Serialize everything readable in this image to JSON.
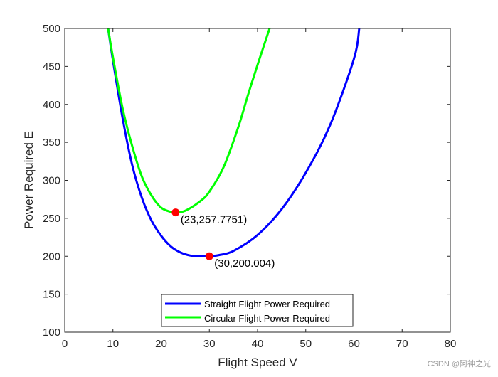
{
  "chart_data": {
    "type": "line",
    "xlabel": "Flight Speed V",
    "ylabel": "Power Required E",
    "xlim": [
      0,
      80
    ],
    "ylim": [
      100,
      500
    ],
    "xticks": [
      0,
      10,
      20,
      30,
      40,
      50,
      60,
      70,
      80
    ],
    "yticks": [
      100,
      150,
      200,
      250,
      300,
      350,
      400,
      450,
      500
    ],
    "grid": false,
    "legend_position": "bottom-center",
    "series": [
      {
        "name": "Straight Flight Power Required",
        "color": "#0000ff",
        "x": [
          9,
          10,
          12,
          14,
          16,
          18,
          20,
          22,
          24,
          26,
          28,
          30,
          32,
          35,
          40,
          45,
          50,
          55,
          60,
          61.1
        ],
        "y": [
          500,
          458,
          382,
          320,
          277,
          247,
          227,
          213,
          205,
          201,
          200,
          200,
          201.5,
          207,
          228,
          262,
          310,
          372,
          460,
          500
        ]
      },
      {
        "name": "Circular Flight Power Required",
        "color": "#00ff00",
        "x": [
          9,
          10,
          12,
          14,
          16,
          18,
          20,
          22,
          23,
          25,
          28,
          30,
          33,
          36,
          38,
          40,
          42.5
        ],
        "y": [
          500,
          462,
          395,
          345,
          305,
          280,
          264,
          258.5,
          257.8,
          260,
          272,
          285,
          318,
          370,
          412,
          452,
          500
        ]
      }
    ],
    "markers": [
      {
        "x": 23,
        "y": 257.7751,
        "label": "(23,257.7751)",
        "color": "#ff0000"
      },
      {
        "x": 30,
        "y": 200.004,
        "label": "(30,200.004)",
        "color": "#ff0000"
      }
    ]
  },
  "watermark": "CSDN @阿神之光"
}
